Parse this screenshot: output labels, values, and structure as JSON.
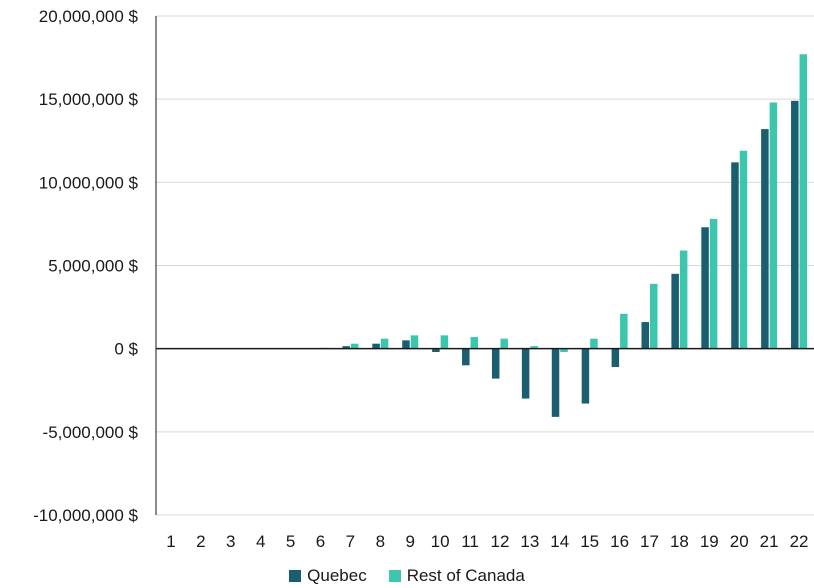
{
  "chart_data": {
    "type": "bar",
    "categories": [
      "1",
      "2",
      "3",
      "4",
      "5",
      "6",
      "7",
      "8",
      "9",
      "10",
      "11",
      "12",
      "13",
      "14",
      "15",
      "16",
      "17",
      "18",
      "19",
      "20",
      "21",
      "22"
    ],
    "series": [
      {
        "name": "Quebec",
        "color": "#1b5e6f",
        "values": [
          0,
          0,
          0,
          0,
          0,
          0,
          150000,
          300000,
          500000,
          -200000,
          -1000000,
          -1800000,
          -3000000,
          -4100000,
          -3300000,
          -1100000,
          1600000,
          4500000,
          7300000,
          11200000,
          13200000,
          14900000
        ]
      },
      {
        "name": "Rest of Canada",
        "color": "#3cc6ae",
        "values": [
          0,
          0,
          0,
          0,
          0,
          50000,
          300000,
          600000,
          800000,
          800000,
          700000,
          600000,
          150000,
          -200000,
          600000,
          2100000,
          3900000,
          5900000,
          7800000,
          11900000,
          14800000,
          17700000
        ]
      }
    ],
    "y_ticks": [
      "20,000,000 $",
      "15,000,000 $",
      "10,000,000 $",
      "5,000,000 $",
      "0 $",
      "-5,000,000 $",
      "-10,000,000 $"
    ],
    "ylim": [
      -10000000,
      20000000
    ],
    "grid": true,
    "legend": "bottom-center",
    "title": "",
    "xlabel": "",
    "ylabel": ""
  }
}
